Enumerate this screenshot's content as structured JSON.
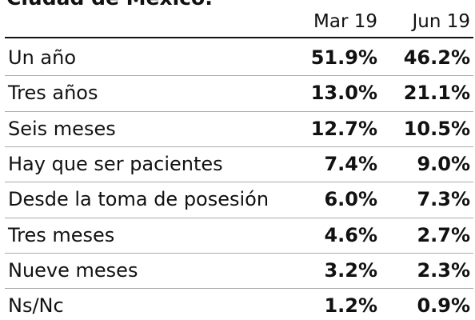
{
  "table": {
    "title": "Ciudad de México:",
    "columns": [
      "Mar 19",
      "Jun 19"
    ],
    "rows": [
      [
        "Un año",
        "51.9%",
        "46.2%"
      ],
      [
        "Tres años",
        "13.0%",
        "21.1%"
      ],
      [
        "Seis meses",
        "12.7%",
        "10.5%"
      ],
      [
        "Hay que ser pacientes",
        "7.4%",
        "9.0%"
      ],
      [
        "Desde la toma de posesión",
        "6.0%",
        "7.3%"
      ],
      [
        "Tres meses",
        "4.6%",
        "2.7%"
      ],
      [
        "Nueve meses",
        "3.2%",
        "2.3%"
      ],
      [
        "Ns/Nc",
        "1.2%",
        "0.9%"
      ]
    ]
  }
}
